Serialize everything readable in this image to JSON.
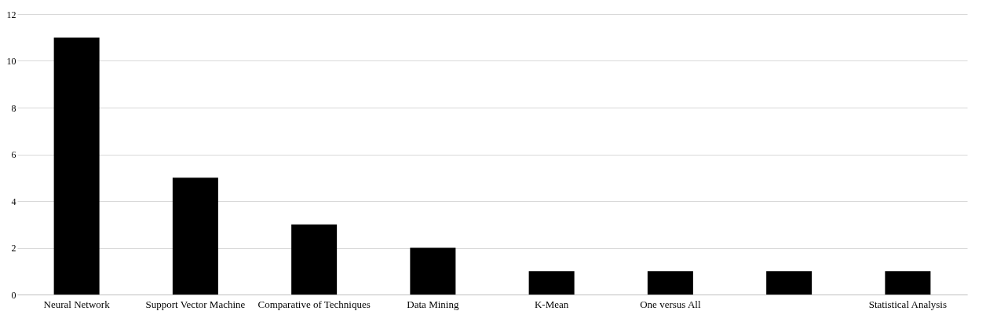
{
  "chart_data": {
    "type": "bar",
    "categories": [
      "Neural Network",
      "Support Vector Machine",
      "Comparative of Techniques",
      "Data Mining",
      "K-Mean",
      "One versus All",
      null,
      "Statistical Analysis"
    ],
    "values": [
      11,
      5,
      3,
      2,
      1,
      1,
      1,
      1
    ],
    "color": "#000000",
    "ylim": [
      0,
      12
    ],
    "yticks": [
      0,
      2,
      4,
      6,
      8,
      10,
      12
    ],
    "grid": "y"
  }
}
